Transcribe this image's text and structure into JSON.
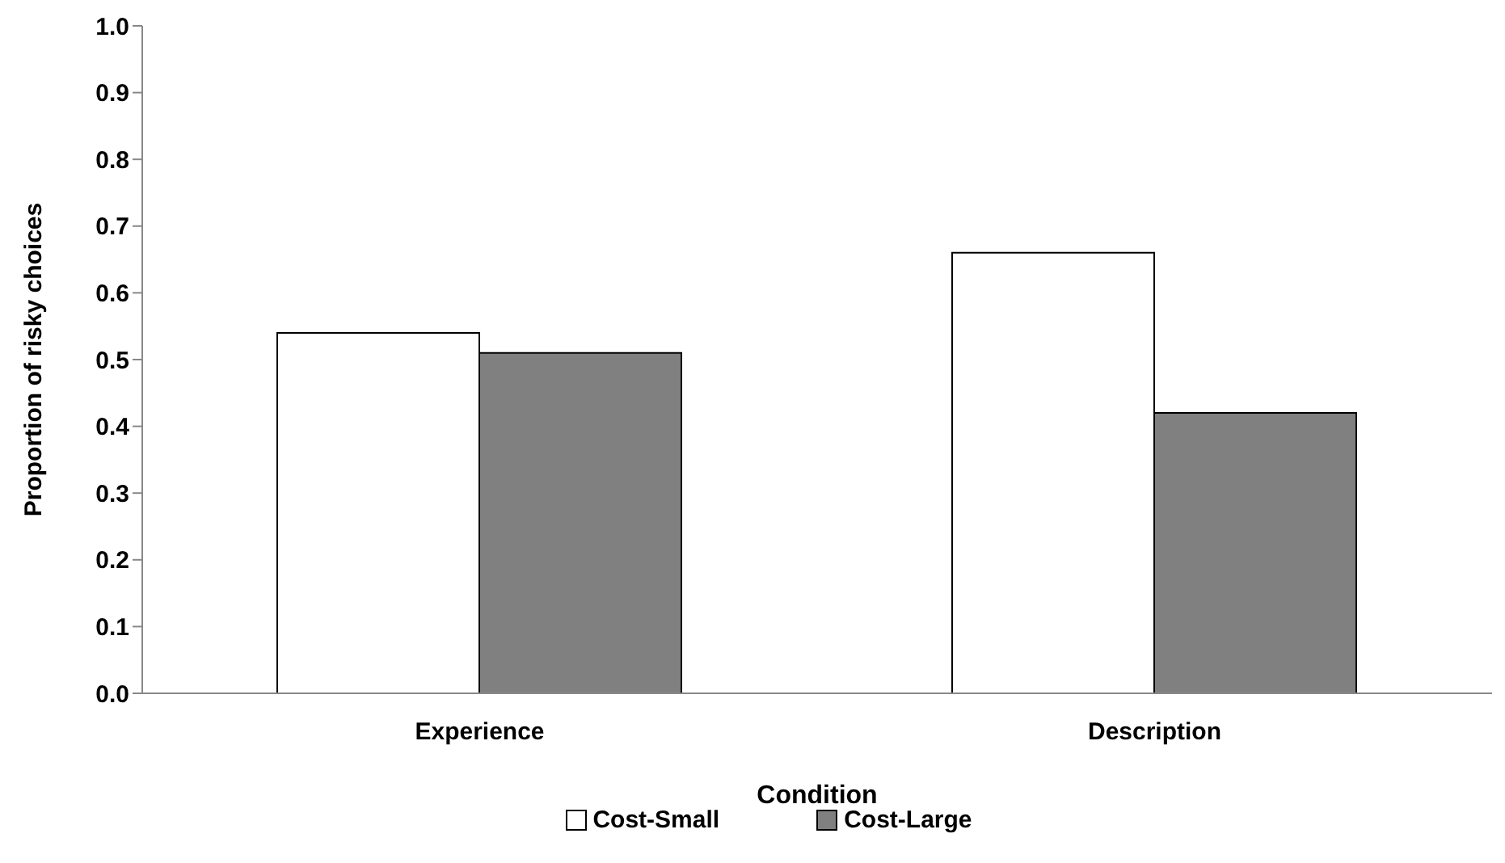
{
  "chart_data": {
    "type": "bar",
    "xlabel": "Condition",
    "ylabel": "Proportion of risky choices",
    "categories": [
      "Experience",
      "Description"
    ],
    "series": [
      {
        "name": "Cost-Small",
        "color": "#ffffff",
        "values": [
          0.54,
          0.66
        ]
      },
      {
        "name": "Cost-Large",
        "color": "#808080",
        "values": [
          0.51,
          0.42
        ]
      }
    ],
    "ylim": [
      0,
      1
    ],
    "yticks": [
      {
        "value": 0,
        "label": "0.0"
      },
      {
        "value": 0.1,
        "label": "0.1"
      },
      {
        "value": 0.2,
        "label": "0.2"
      },
      {
        "value": 0.3,
        "label": "0.3"
      },
      {
        "value": 0.4,
        "label": "0.4"
      },
      {
        "value": 0.5,
        "label": "0.5"
      },
      {
        "value": 0.6,
        "label": "0.6"
      },
      {
        "value": 0.7,
        "label": "0.7"
      },
      {
        "value": 0.8,
        "label": "0.8"
      },
      {
        "value": 0.9,
        "label": "0.9"
      },
      {
        "value": 1,
        "label": "1.0"
      }
    ],
    "grid": false,
    "legend": "bottom"
  }
}
